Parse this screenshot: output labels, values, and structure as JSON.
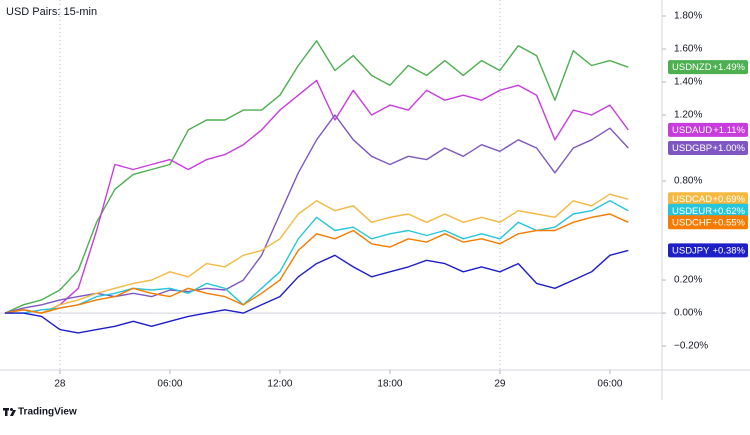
{
  "chart_data": {
    "type": "line",
    "title": "USD Pairs: 15-min",
    "source": "TradingView",
    "x": [
      -3,
      -2,
      -1,
      0,
      1,
      2,
      3,
      4,
      5,
      6,
      7,
      8,
      9,
      10,
      11,
      12,
      13,
      14,
      15,
      16,
      17,
      18,
      19,
      20,
      21,
      22,
      23,
      24,
      25,
      26,
      27,
      28,
      29,
      30,
      31
    ],
    "xlim": [
      -3.27,
      32.84
    ],
    "xticks": [
      {
        "value": 0,
        "label": "28"
      },
      {
        "value": 6,
        "label": "06:00"
      },
      {
        "value": 12,
        "label": "12:00"
      },
      {
        "value": 18,
        "label": "18:00"
      },
      {
        "value": 24,
        "label": "29"
      },
      {
        "value": 30,
        "label": "06:00"
      }
    ],
    "ylim": [
      -0.345,
      1.897
    ],
    "yticks": [
      {
        "value": -0.2,
        "label": "−0.20%"
      },
      {
        "value": 0,
        "label": "0.00%"
      },
      {
        "value": 0.2,
        "label": "0.20%"
      },
      {
        "value": 0.8,
        "label": "0.80%"
      },
      {
        "value": 1.2,
        "label": "1.20%"
      },
      {
        "value": 1.4,
        "label": "1.40%"
      },
      {
        "value": 1.6,
        "label": "1.60%"
      },
      {
        "value": 1.8,
        "label": "1.80%"
      }
    ],
    "zero_line": true,
    "day_separators": [
      0,
      24
    ],
    "series": [
      {
        "name": "USDNZD",
        "color": "#4caf50",
        "end_label": "+1.49%",
        "values": [
          0,
          0.05,
          0.08,
          0.14,
          0.26,
          0.55,
          0.75,
          0.84,
          0.87,
          0.9,
          1.11,
          1.17,
          1.17,
          1.23,
          1.23,
          1.32,
          1.5,
          1.65,
          1.47,
          1.56,
          1.44,
          1.38,
          1.5,
          1.44,
          1.53,
          1.44,
          1.53,
          1.47,
          1.62,
          1.56,
          1.29,
          1.59,
          1.5,
          1.53,
          1.49
        ]
      },
      {
        "name": "USDAUD",
        "color": "#c83cde",
        "end_label": "+1.11%",
        "values": [
          0,
          0.02,
          0,
          0.05,
          0.15,
          0.5,
          0.9,
          0.87,
          0.9,
          0.93,
          0.87,
          0.93,
          0.96,
          1.02,
          1.11,
          1.23,
          1.32,
          1.41,
          1.17,
          1.35,
          1.2,
          1.26,
          1.23,
          1.35,
          1.29,
          1.32,
          1.29,
          1.35,
          1.38,
          1.32,
          1.05,
          1.23,
          1.2,
          1.26,
          1.11
        ]
      },
      {
        "name": "USDGBP",
        "color": "#7e57c2",
        "end_label": "+1.00%",
        "values": [
          0,
          0.03,
          0.05,
          0.08,
          0.1,
          0.12,
          0.1,
          0.12,
          0.1,
          0.14,
          0.13,
          0.15,
          0.14,
          0.2,
          0.35,
          0.6,
          0.85,
          1.05,
          1.2,
          1.05,
          0.95,
          0.9,
          0.95,
          0.93,
          1.0,
          0.95,
          1.02,
          0.98,
          1.05,
          1.0,
          0.85,
          1.0,
          1.05,
          1.12,
          1.0
        ]
      },
      {
        "name": "USDCAD",
        "color": "#f5b841",
        "end_label": "+0.69%",
        "values": [
          0,
          0.02,
          0,
          0.05,
          0.08,
          0.12,
          0.15,
          0.18,
          0.2,
          0.25,
          0.22,
          0.3,
          0.28,
          0.35,
          0.38,
          0.45,
          0.6,
          0.68,
          0.62,
          0.65,
          0.55,
          0.58,
          0.6,
          0.55,
          0.6,
          0.55,
          0.58,
          0.55,
          0.62,
          0.6,
          0.58,
          0.68,
          0.65,
          0.72,
          0.69
        ]
      },
      {
        "name": "USDEUR",
        "color": "#26c6da",
        "end_label": "+0.62%",
        "values": [
          0,
          0,
          0.02,
          0.03,
          0.05,
          0.1,
          0.12,
          0.15,
          0.14,
          0.15,
          0.12,
          0.18,
          0.15,
          0.05,
          0.15,
          0.25,
          0.45,
          0.58,
          0.5,
          0.52,
          0.45,
          0.48,
          0.5,
          0.47,
          0.5,
          0.45,
          0.48,
          0.45,
          0.55,
          0.5,
          0.52,
          0.6,
          0.62,
          0.68,
          0.62
        ]
      },
      {
        "name": "USDCHF",
        "color": "#f57c00",
        "end_label": "+0.55%",
        "values": [
          0,
          0.02,
          0,
          0.03,
          0.05,
          0.08,
          0.1,
          0.15,
          0.12,
          0.1,
          0.15,
          0.12,
          0.1,
          0.05,
          0.12,
          0.2,
          0.38,
          0.48,
          0.45,
          0.5,
          0.42,
          0.4,
          0.45,
          0.43,
          0.48,
          0.43,
          0.45,
          0.42,
          0.48,
          0.5,
          0.5,
          0.55,
          0.58,
          0.6,
          0.55
        ]
      },
      {
        "name": "USDJPY",
        "color": "#1f1fc8",
        "end_label": "+0.38%",
        "values": [
          0,
          0,
          -0.02,
          -0.1,
          -0.12,
          -0.1,
          -0.08,
          -0.05,
          -0.08,
          -0.05,
          -0.02,
          0,
          0.02,
          0,
          0.05,
          0.1,
          0.22,
          0.3,
          0.35,
          0.28,
          0.22,
          0.25,
          0.28,
          0.32,
          0.3,
          0.25,
          0.28,
          0.25,
          0.3,
          0.18,
          0.15,
          0.2,
          0.25,
          0.35,
          0.38
        ]
      }
    ]
  }
}
